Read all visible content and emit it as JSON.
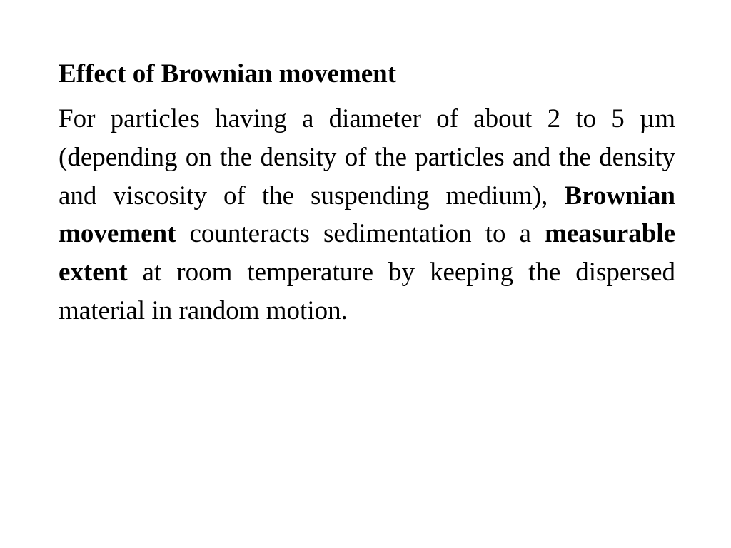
{
  "document": {
    "heading": "Effect of Brownian movement",
    "body_part1": "For particles having a diameter of about 2 to 5 µm (depending on the density of the particles and the density and viscosity of the suspending medium), ",
    "bold1": "Brownian movement",
    "body_part2": " counteracts sedimentation to a ",
    "bold2": "measurable extent",
    "body_part3": " at room temperature by keeping the dispersed material in random motion."
  },
  "style": {
    "background_color": "#ffffff",
    "text_color": "#000000",
    "font_family": "Times New Roman",
    "heading_fontsize": 37,
    "body_fontsize": 37,
    "heading_weight": "bold",
    "body_weight": "normal",
    "text_align": "justify",
    "line_height": 1.45
  }
}
